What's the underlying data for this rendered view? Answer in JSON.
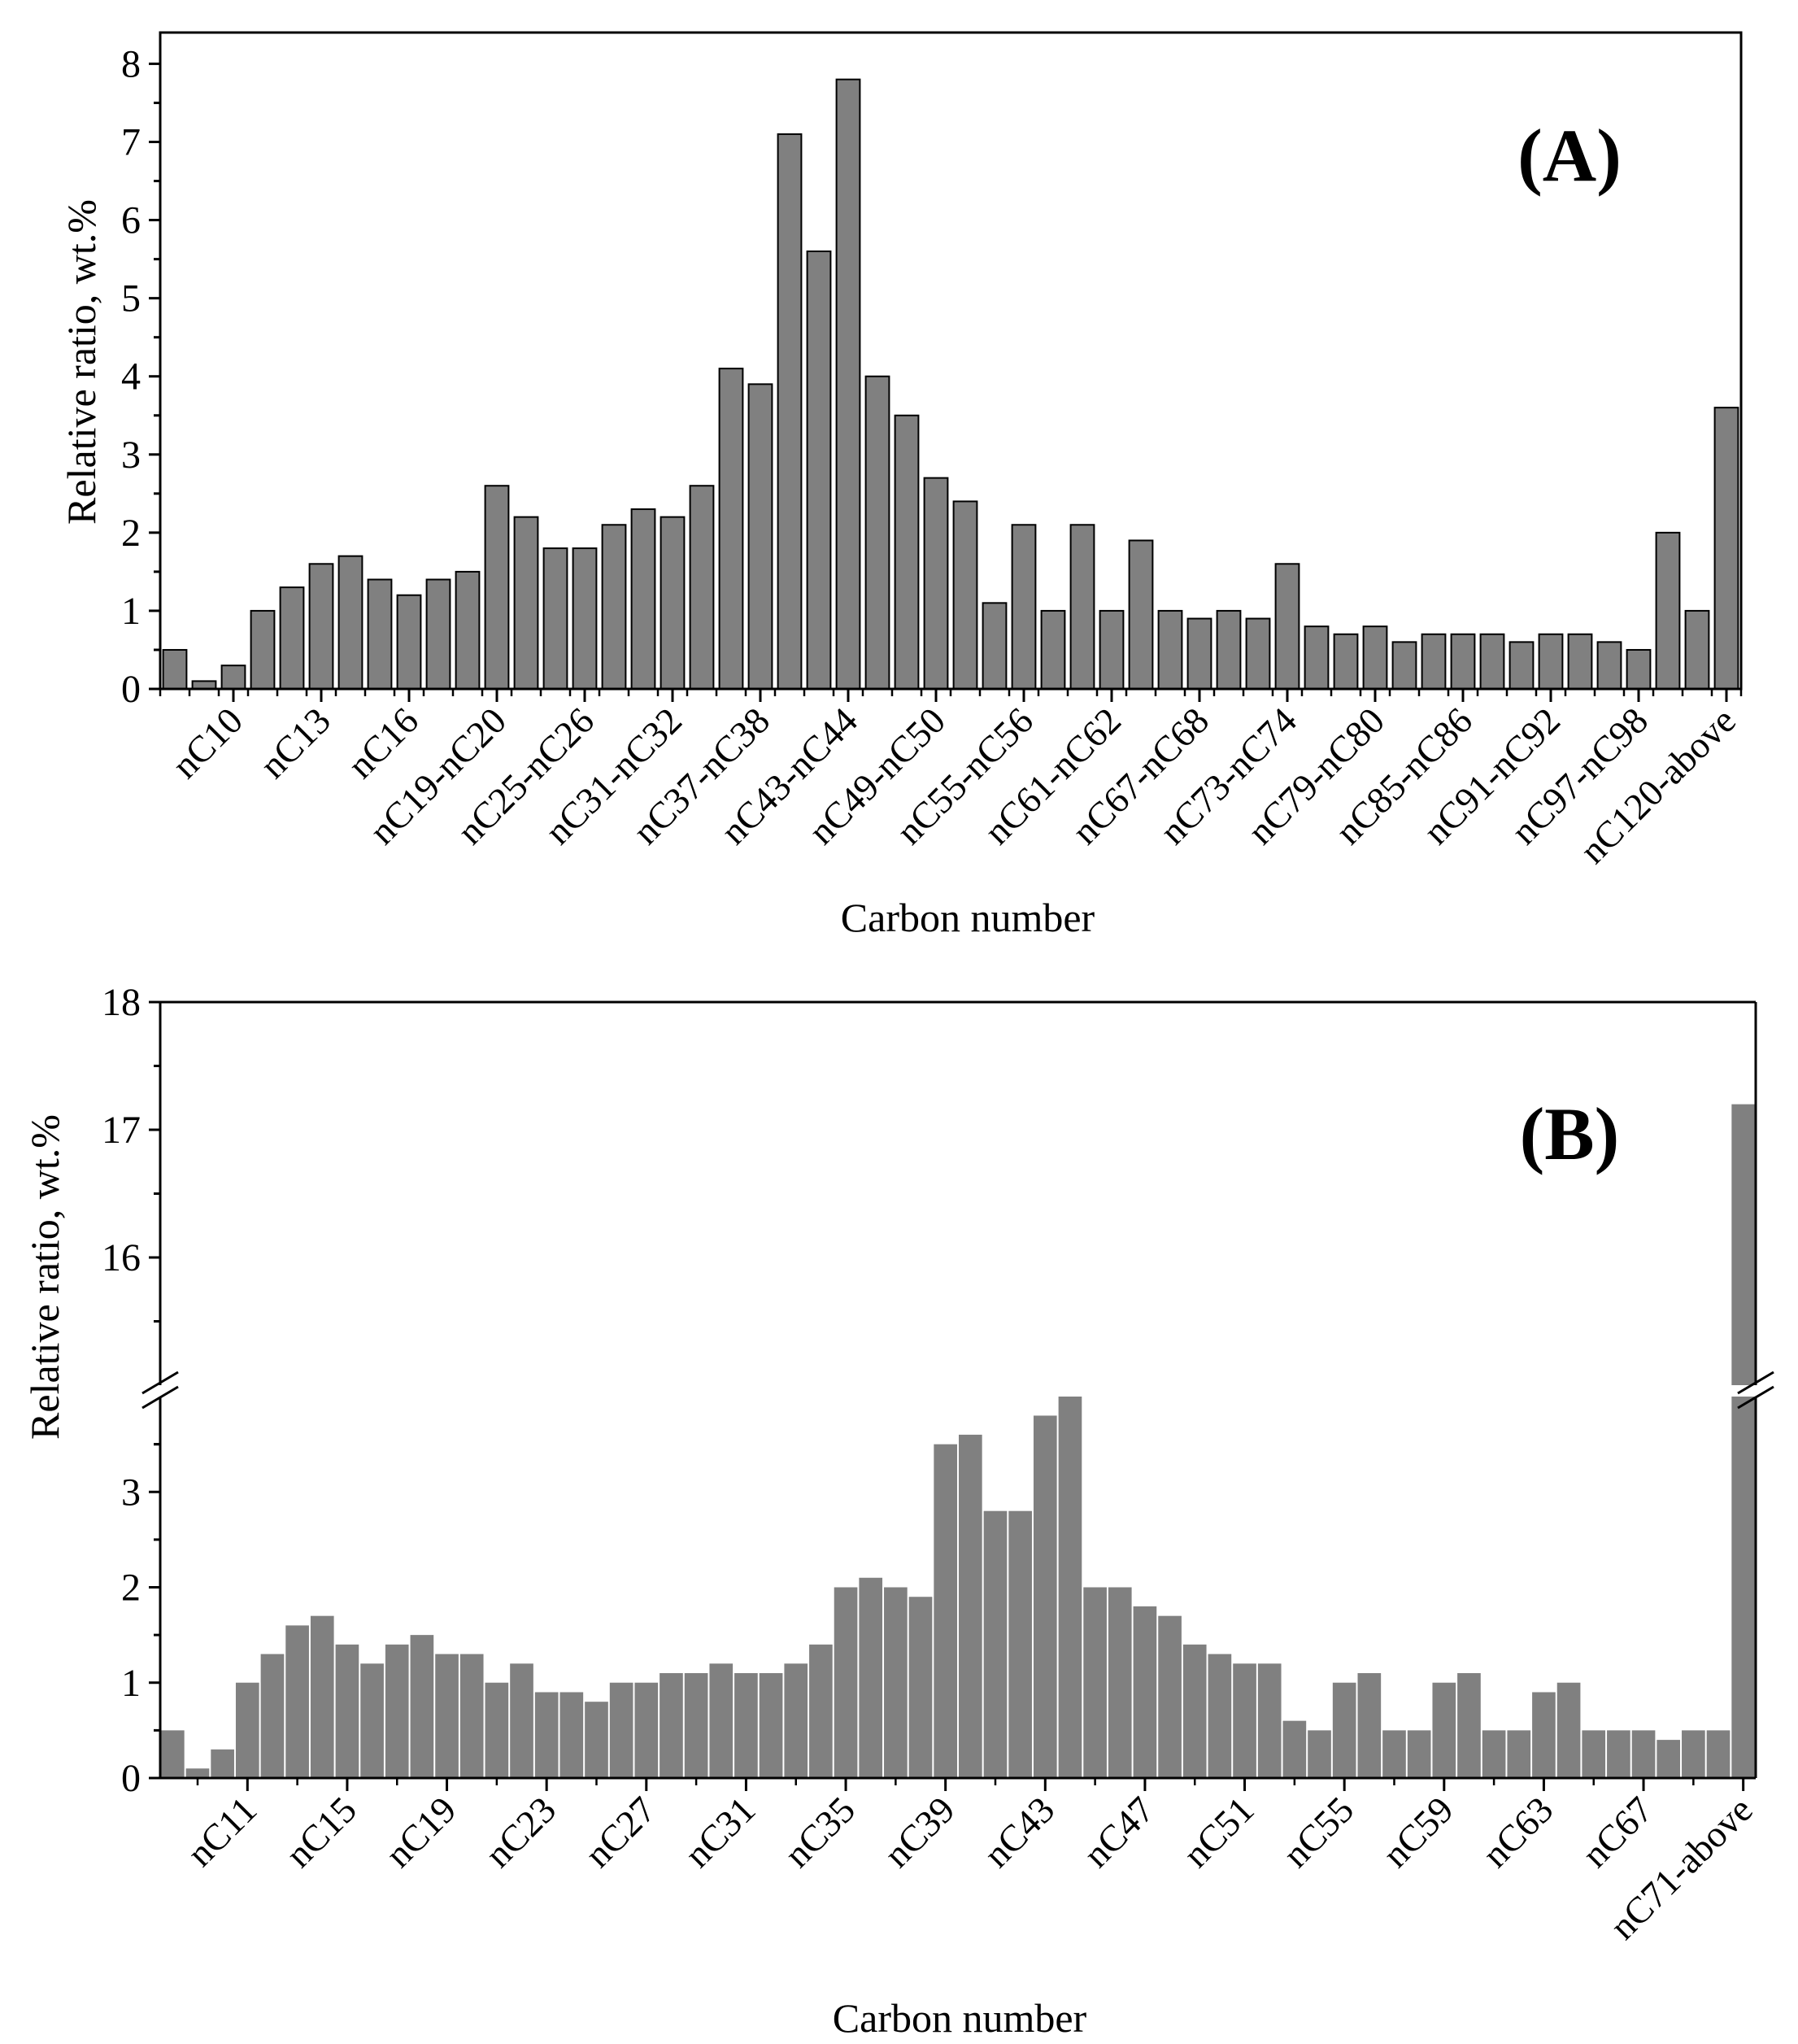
{
  "chart_data": [
    {
      "type": "bar",
      "panel_label": "(A)",
      "xlabel": "Carbon number",
      "ylabel": "Relative ratio, wt.%",
      "ylim": [
        0,
        8.4
      ],
      "yticks": [
        0,
        1,
        2,
        3,
        4,
        5,
        6,
        7,
        8
      ],
      "bar_color": "#808080",
      "bar_edge": "#000000",
      "values": [
        0.5,
        0.1,
        0.3,
        1.0,
        1.3,
        1.6,
        1.7,
        1.4,
        1.2,
        1.4,
        1.5,
        2.6,
        2.2,
        1.8,
        1.8,
        2.1,
        2.3,
        2.2,
        2.6,
        4.1,
        3.9,
        7.1,
        5.6,
        7.8,
        4.0,
        3.5,
        2.7,
        2.4,
        1.1,
        2.1,
        1.0,
        2.1,
        1.0,
        1.9,
        1.0,
        0.9,
        1.0,
        0.9,
        1.6,
        0.8,
        0.7,
        0.8,
        0.6,
        0.7,
        0.7,
        0.7,
        0.6,
        0.7,
        0.7,
        0.6,
        0.5,
        2.0,
        1.0,
        3.6
      ],
      "xtick_labels": [
        {
          "index": 2,
          "text": "nC10"
        },
        {
          "index": 5,
          "text": "nC13"
        },
        {
          "index": 8,
          "text": "nC16"
        },
        {
          "index": 11,
          "text": "nC19-nC20"
        },
        {
          "index": 14,
          "text": "nC25-nC26"
        },
        {
          "index": 17,
          "text": "nC31-nC32"
        },
        {
          "index": 20,
          "text": "nC37-nC38"
        },
        {
          "index": 23,
          "text": "nC43-nC44"
        },
        {
          "index": 26,
          "text": "nC49-nC50"
        },
        {
          "index": 29,
          "text": "nC55-nC56"
        },
        {
          "index": 32,
          "text": "nC61-nC62"
        },
        {
          "index": 35,
          "text": "nC67-nC68"
        },
        {
          "index": 38,
          "text": "nC73-nC74"
        },
        {
          "index": 41,
          "text": "nC79-nC80"
        },
        {
          "index": 44,
          "text": "nC85-nC86"
        },
        {
          "index": 47,
          "text": "nC91-nC92"
        },
        {
          "index": 50,
          "text": "nC97-nC98"
        },
        {
          "index": 53,
          "text": "nC120-above"
        }
      ]
    },
    {
      "type": "bar",
      "panel_label": "(B)",
      "xlabel": "Carbon number",
      "ylabel": "Relative ratio, wt.%",
      "broken_axis": true,
      "ylim_lower": [
        0,
        4.0
      ],
      "ylim_upper": [
        15.0,
        18.0
      ],
      "yticks_lower": [
        0,
        1,
        2,
        3
      ],
      "yticks_upper": [
        16,
        17,
        18
      ],
      "bar_color": "#808080",
      "bar_edge": "#ffffff",
      "values": [
        0.5,
        0.1,
        0.3,
        1.0,
        1.3,
        1.6,
        1.7,
        1.4,
        1.2,
        1.4,
        1.5,
        1.3,
        1.3,
        1.0,
        1.2,
        0.9,
        0.9,
        0.8,
        1.0,
        1.0,
        1.1,
        1.1,
        1.2,
        1.1,
        1.1,
        1.2,
        1.4,
        2.0,
        2.1,
        2.0,
        1.9,
        3.5,
        3.6,
        2.8,
        2.8,
        3.8,
        4.0,
        2.0,
        2.0,
        1.8,
        1.7,
        1.4,
        1.3,
        1.2,
        1.2,
        0.6,
        0.5,
        1.0,
        1.1,
        0.5,
        0.5,
        1.0,
        1.1,
        0.5,
        0.5,
        0.9,
        1.0,
        0.5,
        0.5,
        0.5,
        0.4,
        0.5,
        0.5,
        17.2
      ],
      "xtick_labels": [
        {
          "index": 3,
          "text": "nC11"
        },
        {
          "index": 7,
          "text": "nC15"
        },
        {
          "index": 11,
          "text": "nC19"
        },
        {
          "index": 15,
          "text": "nC23"
        },
        {
          "index": 19,
          "text": "nC27"
        },
        {
          "index": 23,
          "text": "nC31"
        },
        {
          "index": 27,
          "text": "nC35"
        },
        {
          "index": 31,
          "text": "nC39"
        },
        {
          "index": 35,
          "text": "nC43"
        },
        {
          "index": 39,
          "text": "nC47"
        },
        {
          "index": 43,
          "text": "nC51"
        },
        {
          "index": 47,
          "text": "nC55"
        },
        {
          "index": 51,
          "text": "nC59"
        },
        {
          "index": 55,
          "text": "nC63"
        },
        {
          "index": 59,
          "text": "nC67"
        },
        {
          "index": 63,
          "text": "nC71-above"
        }
      ]
    }
  ]
}
